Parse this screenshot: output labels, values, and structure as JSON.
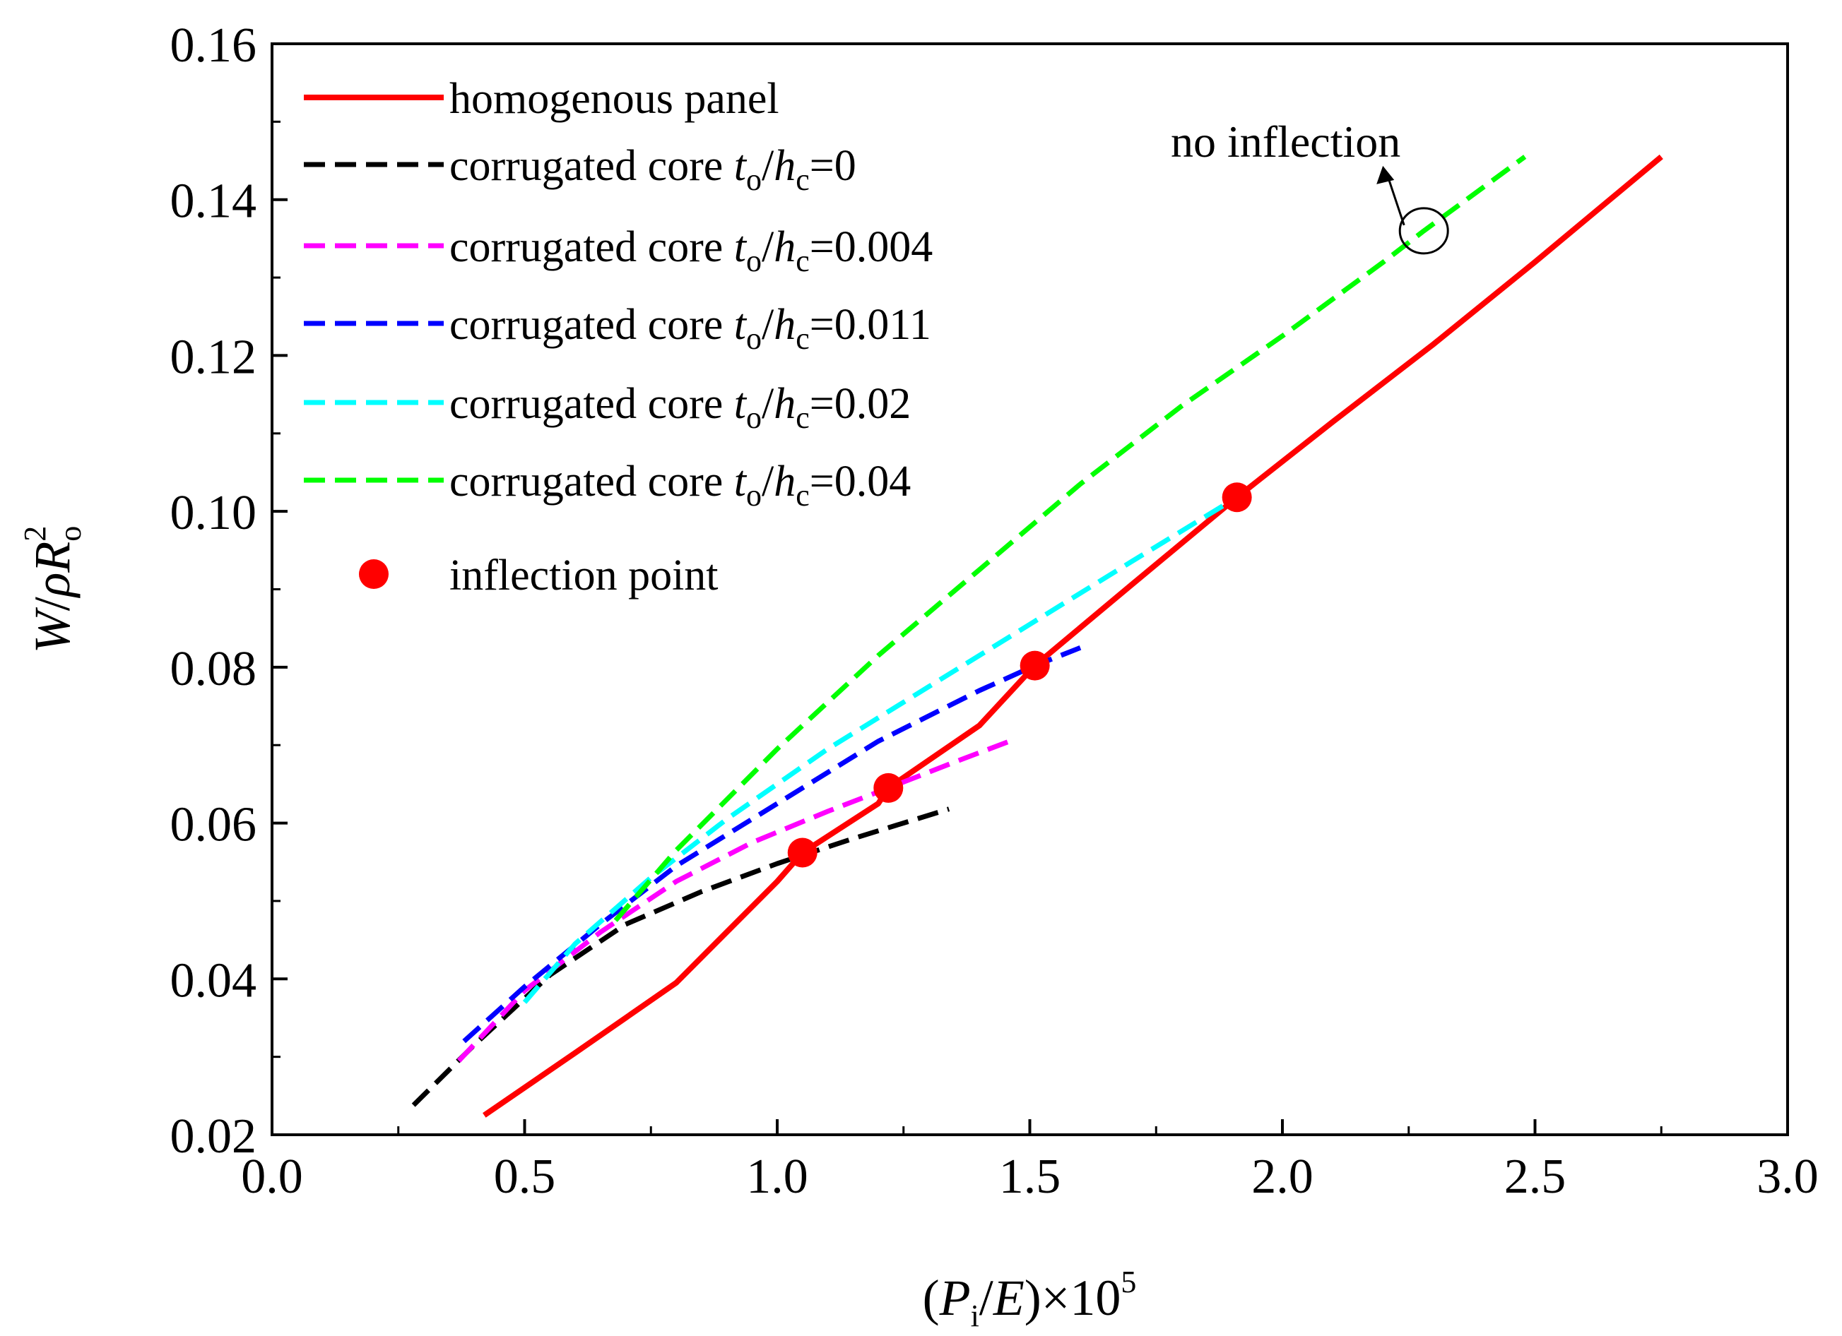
{
  "chart_data": {
    "type": "line",
    "title": "",
    "xlabel": {
      "prefix": "(",
      "var1": "P",
      "var1_sub": "i",
      "slash": "/",
      "var2": "E",
      "suffix": ")×10",
      "power": "5"
    },
    "ylabel": {
      "var1": "W",
      "slash": "/",
      "rho": "ρ",
      "var2": "R",
      "var2_sub": "o",
      "power": "2"
    },
    "xlim": [
      0,
      3.0
    ],
    "ylim": [
      0.02,
      0.16
    ],
    "xticks": [
      "0.0",
      "0.5",
      "1.0",
      "1.5",
      "2.0",
      "2.5",
      "3.0"
    ],
    "yticks": [
      "0.02",
      "0.04",
      "0.06",
      "0.08",
      "0.10",
      "0.12",
      "0.14",
      "0.16"
    ],
    "grid": false,
    "legend_position": "top-left",
    "series": [
      {
        "name": "homogenous panel",
        "label": {
          "text": "homogenous panel"
        },
        "color": "#ff0000",
        "style": "solid",
        "x": [
          0.42,
          0.6,
          0.8,
          1.0,
          1.05,
          1.2,
          1.22,
          1.4,
          1.51,
          1.7,
          1.91,
          2.1,
          2.3,
          2.5,
          2.75
        ],
        "y": [
          0.0225,
          0.0305,
          0.0395,
          0.0525,
          0.0562,
          0.0625,
          0.0645,
          0.0725,
          0.0802,
          0.0905,
          0.1018,
          0.1115,
          0.1215,
          0.132,
          0.1455
        ]
      },
      {
        "name": "corrugated core to/hc=0",
        "label": {
          "prefix": "corrugated core ",
          "t": "t",
          "t_sub": "o",
          "slash": "/",
          "h": "h",
          "h_sub": "c",
          "value": "=0"
        },
        "color": "#000000",
        "style": "dashed",
        "x": [
          0.28,
          0.4,
          0.55,
          0.7,
          0.85,
          1.0,
          1.15,
          1.34
        ],
        "y": [
          0.0238,
          0.0315,
          0.0405,
          0.047,
          0.0512,
          0.0548,
          0.058,
          0.0618
        ]
      },
      {
        "name": "corrugated core to/hc=0.004",
        "label": {
          "prefix": "corrugated core ",
          "t": "t",
          "t_sub": "o",
          "slash": "/",
          "h": "h",
          "h_sub": "c",
          "value": "=0.004"
        },
        "color": "#ff00ff",
        "style": "dashed",
        "x": [
          0.37,
          0.5,
          0.65,
          0.8,
          0.95,
          1.1,
          1.22,
          1.35,
          1.46
        ],
        "y": [
          0.0295,
          0.0385,
          0.046,
          0.0525,
          0.0575,
          0.0615,
          0.0645,
          0.0678,
          0.0705
        ]
      },
      {
        "name": "corrugated core to/hc=0.011",
        "label": {
          "prefix": "corrugated core ",
          "t": "t",
          "t_sub": "o",
          "slash": "/",
          "h": "h",
          "h_sub": "c",
          "value": "=0.011"
        },
        "color": "#0000ff",
        "style": "dashed",
        "x": [
          0.38,
          0.5,
          0.65,
          0.8,
          1.0,
          1.2,
          1.4,
          1.51,
          1.6
        ],
        "y": [
          0.032,
          0.039,
          0.047,
          0.0545,
          0.0625,
          0.0705,
          0.077,
          0.0802,
          0.0825
        ]
      },
      {
        "name": "corrugated core to/hc=0.02",
        "label": {
          "prefix": "corrugated core ",
          "t": "t",
          "t_sub": "o",
          "slash": "/",
          "h": "h",
          "h_sub": "c",
          "value": "=0.02"
        },
        "color": "#00ffff",
        "style": "dashed",
        "x": [
          0.5,
          0.6,
          0.75,
          0.9,
          1.1,
          1.3,
          1.5,
          1.7,
          1.91
        ],
        "y": [
          0.037,
          0.0445,
          0.053,
          0.0605,
          0.0695,
          0.0775,
          0.0855,
          0.0935,
          0.1018
        ]
      },
      {
        "name": "corrugated core to/hc=0.04",
        "label": {
          "prefix": "corrugated core ",
          "t": "t",
          "t_sub": "o",
          "slash": "/",
          "h": "h",
          "h_sub": "c",
          "value": "=0.04"
        },
        "color": "#00ff00",
        "style": "dashed",
        "x": [
          0.68,
          0.8,
          1.0,
          1.2,
          1.4,
          1.6,
          1.8,
          2.0,
          2.2,
          2.28,
          2.48
        ],
        "y": [
          0.0475,
          0.0565,
          0.0695,
          0.0815,
          0.0925,
          0.1035,
          0.1135,
          0.1225,
          0.132,
          0.136,
          0.1455
        ]
      }
    ],
    "inflection_points": {
      "name": "inflection point",
      "color": "#ff0000",
      "x": [
        1.05,
        1.22,
        1.51,
        1.91
      ],
      "y": [
        0.0562,
        0.0645,
        0.0802,
        0.1018
      ]
    },
    "annotation": {
      "text": "no inflection",
      "x": 2.28,
      "y": 0.136
    }
  }
}
